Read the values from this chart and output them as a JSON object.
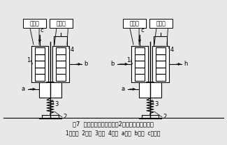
{
  "bg_color": "#e8e8e8",
  "line_color": "#000000",
  "title_caption": "图7  有金属波纹管动密封的2种气控阀用例原理图",
  "legend_caption": "1波纹管  2弹簧  3阀头  4壳体  a入口  b出口  c气控口",
  "ctrl_label": "控制腔",
  "work_label": "工作腔",
  "label_a": "a",
  "label_b": "b",
  "label_c": "c",
  "label_1": "1",
  "label_2": "2",
  "label_3": "3",
  "label_4": "4",
  "label_h": "h"
}
